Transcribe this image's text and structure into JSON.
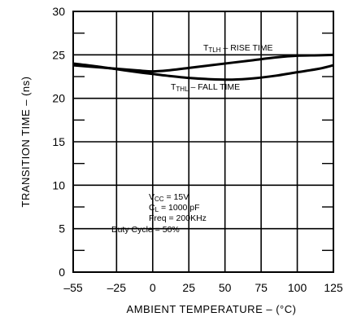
{
  "chart_data": {
    "type": "line",
    "title": "",
    "xlabel": "AMBIENT TEMPERATURE – (°C)",
    "ylabel": "TRANSITION TIME – (ns)",
    "xlim": [
      -55,
      125
    ],
    "ylim": [
      0,
      30
    ],
    "x_ticks": [
      -55,
      -25,
      0,
      25,
      50,
      75,
      100,
      125
    ],
    "x_tick_labels": [
      "–55",
      "–25",
      "0",
      "25",
      "50",
      "75",
      "100",
      "125"
    ],
    "y_ticks": [
      0,
      5,
      10,
      15,
      20,
      25,
      30
    ],
    "y_tick_labels": [
      "0",
      "5",
      "10",
      "15",
      "20",
      "25",
      "30"
    ],
    "grid": true,
    "series": [
      {
        "name": "RISE TIME",
        "label_main": "T",
        "label_sub": "TLH",
        "label_rest": " – RISE TIME",
        "x": [
          -55,
          -40,
          -25,
          -10,
          0,
          10,
          25,
          40,
          55,
          70,
          85,
          100,
          115,
          125
        ],
        "y": [
          23.8,
          23.6,
          23.4,
          23.2,
          23.1,
          23.2,
          23.5,
          23.8,
          24.1,
          24.4,
          24.7,
          24.9,
          24.95,
          25.0
        ]
      },
      {
        "name": "FALL TIME",
        "label_main": "T",
        "label_sub": "THL",
        "label_rest": " – FALL TIME",
        "x": [
          -55,
          -40,
          -25,
          -10,
          0,
          10,
          25,
          40,
          55,
          70,
          85,
          100,
          115,
          125
        ],
        "y": [
          24.0,
          23.7,
          23.35,
          23.0,
          22.8,
          22.6,
          22.35,
          22.2,
          22.15,
          22.3,
          22.6,
          23.0,
          23.4,
          23.8
        ]
      }
    ],
    "conditions": [
      {
        "main": "V",
        "sub": "CC",
        "rest": " = 15V"
      },
      {
        "main": "C",
        "sub": "L",
        "rest": " = 1000 pF"
      },
      {
        "main": "Freq",
        "sub": "",
        "rest": " = 200KHz"
      },
      {
        "main": "Duty Cycle",
        "sub": "",
        "rest": " = 50%"
      }
    ]
  }
}
